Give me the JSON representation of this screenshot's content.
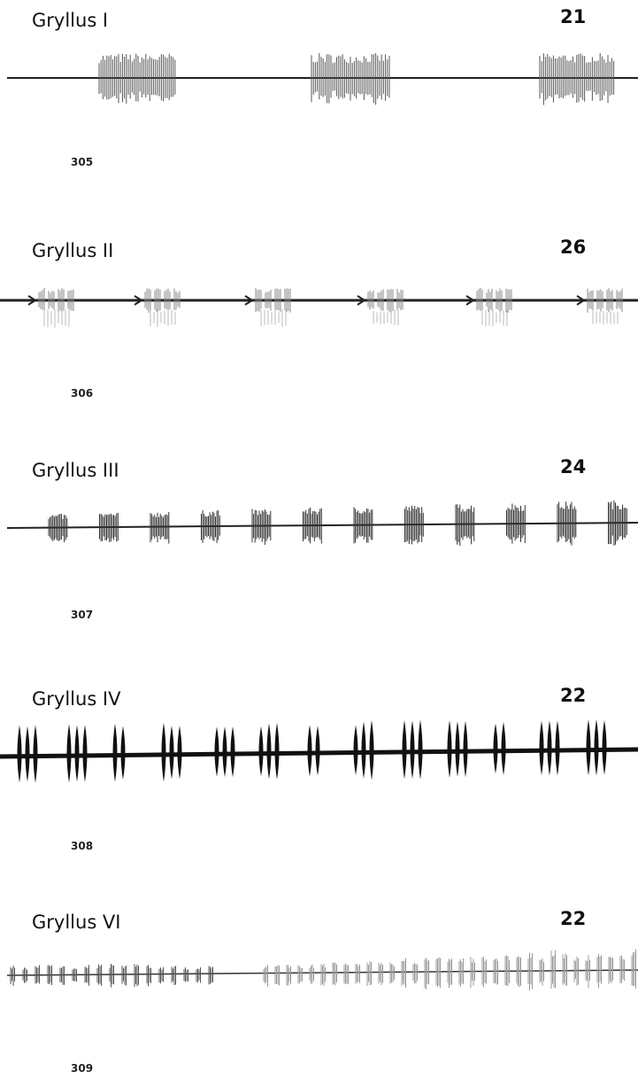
{
  "panels": [
    {
      "title": "Gryllus I",
      "number": 21,
      "figure": 305
    },
    {
      "title": "Gryllus II",
      "number": 26,
      "figure": 306
    },
    {
      "title": "Gryllus III",
      "number": 24,
      "figure": 307
    },
    {
      "title": "Gryllus IV",
      "number": 22,
      "figure": 308
    },
    {
      "title": "Gryllus VI",
      "number": 22,
      "figure": 309
    }
  ]
}
